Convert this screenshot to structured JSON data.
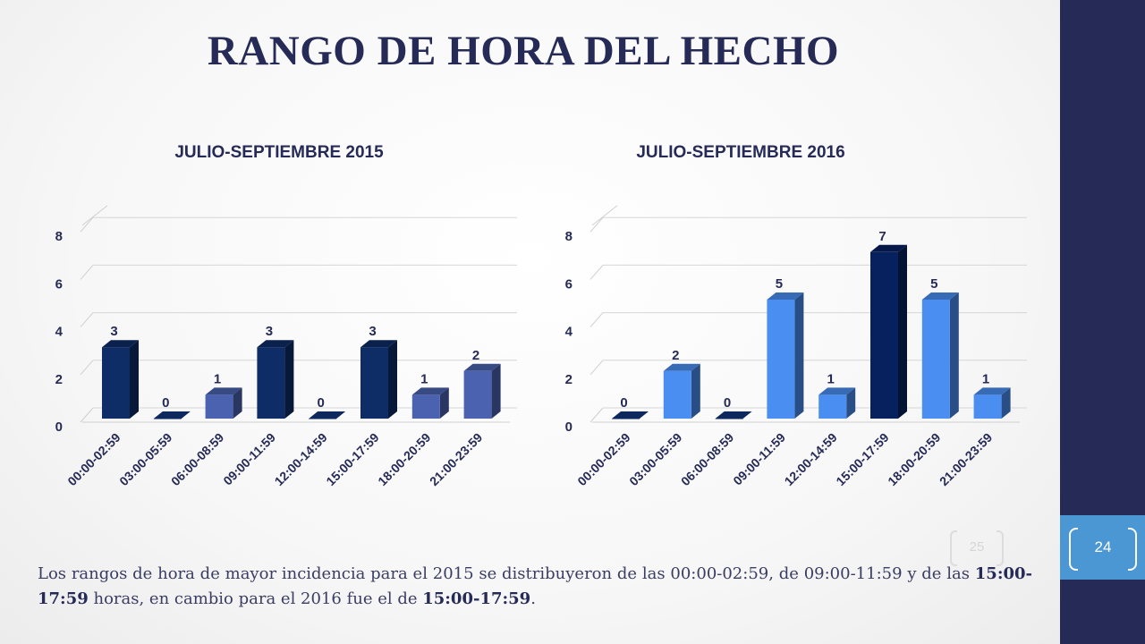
{
  "title": "RANGO DE HORA DEL HECHO",
  "page_number": "24",
  "ghost_page_number": "25",
  "caption": {
    "part1": "Los rangos de hora de mayor incidencia para el 2015 se distribuyeron de las 00:00-02:59, de 09:00-11:59 y de las ",
    "bold1": "15:00-17:59",
    "part2": " horas, en cambio para el 2016 fue el de ",
    "bold2": "15:00-17:59",
    "part3": "."
  },
  "colors": {
    "dark_navy": "#0e2c66",
    "navy_blue": "#07205e",
    "medium_blue": "#4a62b0",
    "light_blue": "#4a8ef2",
    "title": "#262a56"
  },
  "chart_data": [
    {
      "type": "bar",
      "title": "JULIO-SEPTIEMBRE 2015",
      "categories": [
        "00:00-02:59",
        "03:00-05:59",
        "06:00-08:59",
        "09:00-11:59",
        "12:00-14:59",
        "15:00-17:59",
        "18:00-20:59",
        "21:00-23:59"
      ],
      "values": [
        3,
        0,
        1,
        3,
        0,
        3,
        1,
        2
      ],
      "bar_colors": [
        "#0e2c66",
        "#0e2c66",
        "#4a62b0",
        "#0e2c66",
        "#0e2c66",
        "#0e2c66",
        "#4a62b0",
        "#4a62b0"
      ],
      "yticks": [
        0,
        2,
        4,
        6,
        8
      ],
      "ylim": [
        0,
        8.5
      ],
      "xlabel": "",
      "ylabel": "",
      "data_labels": true,
      "legend": "none",
      "grid": true
    },
    {
      "type": "bar",
      "title": "JULIO-SEPTIEMBRE 2016",
      "categories": [
        "00:00-02:59",
        "03:00-05:59",
        "06:00-08:59",
        "09:00-11:59",
        "12:00-14:59",
        "15:00-17:59",
        "18:00-20:59",
        "21:00-23:59"
      ],
      "values": [
        0,
        2,
        0,
        5,
        1,
        7,
        5,
        1
      ],
      "bar_colors": [
        "#0e2c66",
        "#4a8ef2",
        "#0e2c66",
        "#4a8ef2",
        "#4a8ef2",
        "#07205e",
        "#4a8ef2",
        "#4a8ef2"
      ],
      "yticks": [
        0,
        2,
        4,
        6,
        8
      ],
      "ylim": [
        0,
        8.5
      ],
      "xlabel": "",
      "ylabel": "",
      "data_labels": true,
      "legend": "none",
      "grid": true
    }
  ]
}
